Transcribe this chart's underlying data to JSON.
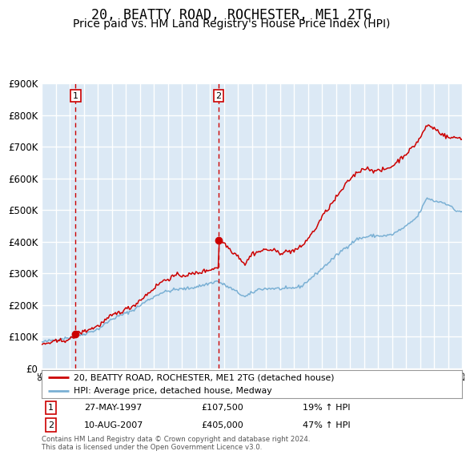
{
  "title": "20, BEATTY ROAD, ROCHESTER, ME1 2TG",
  "subtitle": "Price paid vs. HM Land Registry's House Price Index (HPI)",
  "title_fontsize": 12,
  "subtitle_fontsize": 10,
  "bg_color": "#dce9f5",
  "grid_color": "#ffffff",
  "red_line_color": "#cc0000",
  "blue_line_color": "#7ab0d4",
  "sale1_year": 1997.4,
  "sale1_price": 107500,
  "sale2_year": 2007.62,
  "sale2_price": 405000,
  "legend_label_red": "20, BEATTY ROAD, ROCHESTER, ME1 2TG (detached house)",
  "legend_label_blue": "HPI: Average price, detached house, Medway",
  "annotation1_date": "27-MAY-1997",
  "annotation1_price": "£107,500",
  "annotation1_hpi": "19% ↑ HPI",
  "annotation2_date": "10-AUG-2007",
  "annotation2_price": "£405,000",
  "annotation2_hpi": "47% ↑ HPI",
  "footer": "Contains HM Land Registry data © Crown copyright and database right 2024.\nThis data is licensed under the Open Government Licence v3.0.",
  "ylim": [
    0,
    900000
  ],
  "yticks": [
    0,
    100000,
    200000,
    300000,
    400000,
    500000,
    600000,
    700000,
    800000,
    900000
  ],
  "xlim": [
    1995,
    2025
  ]
}
